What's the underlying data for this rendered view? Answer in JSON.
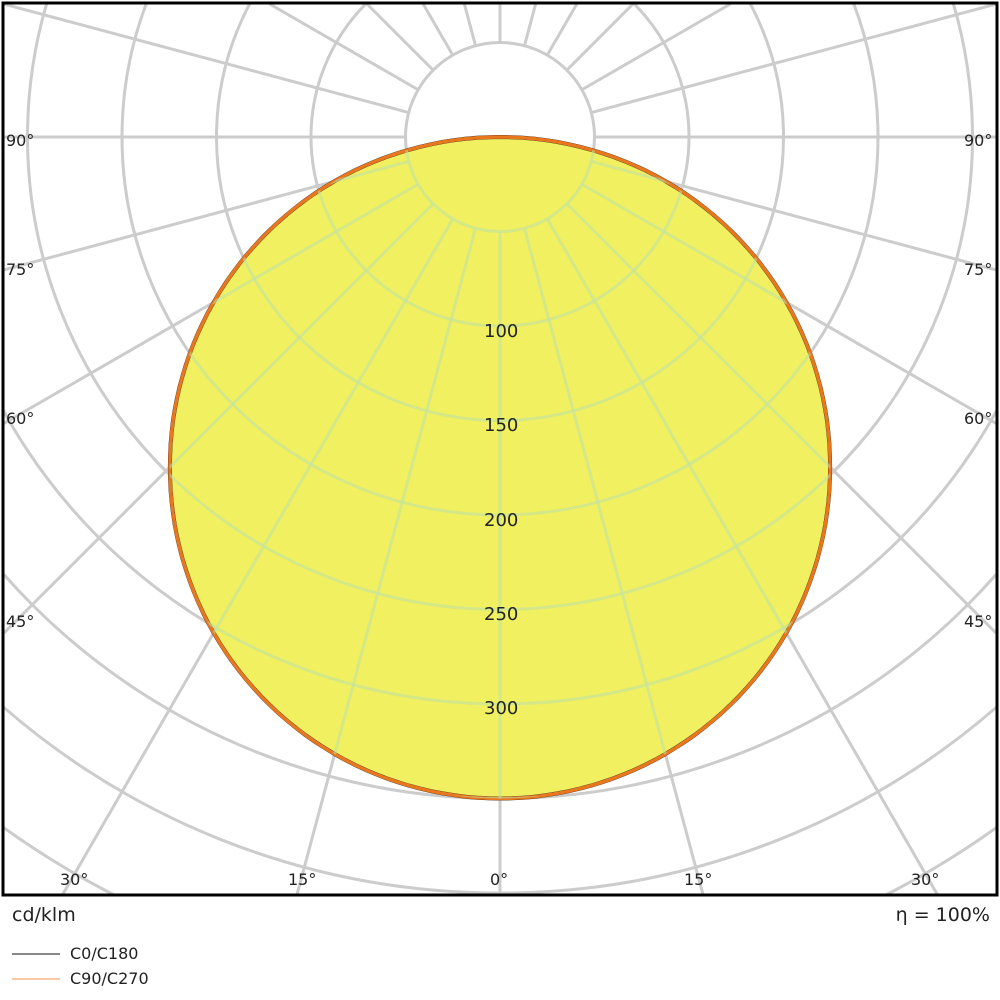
{
  "chart_data": {
    "type": "polar",
    "unit_label": "cd/klm",
    "efficiency_label": "η = 100%",
    "radial_ticks": [
      100,
      150,
      200,
      250,
      300
    ],
    "radial_grid_step": 50,
    "angle_labels_side": [
      "90°",
      "75°",
      "60°",
      "45°"
    ],
    "angle_labels_bottom": [
      "30°",
      "15°",
      "0°",
      "15°",
      "30°"
    ],
    "angles_deg": [
      0,
      15,
      30,
      45,
      60,
      75,
      90
    ],
    "series": [
      {
        "name": "C0/C180",
        "color": "#1a1a1a",
        "values": [
          350,
          338,
          303,
          247,
          175,
          91,
          0
        ]
      },
      {
        "name": "C90/C270",
        "color": "#e8771e",
        "values": [
          350,
          338,
          303,
          247,
          175,
          91,
          0
        ]
      }
    ],
    "fill_color": "#f0f060",
    "grid_color": "#cccccc",
    "legend": [
      "C0/C180",
      "C90/C270"
    ],
    "legend_colors": [
      "#888888",
      "#f8c8a8"
    ]
  }
}
